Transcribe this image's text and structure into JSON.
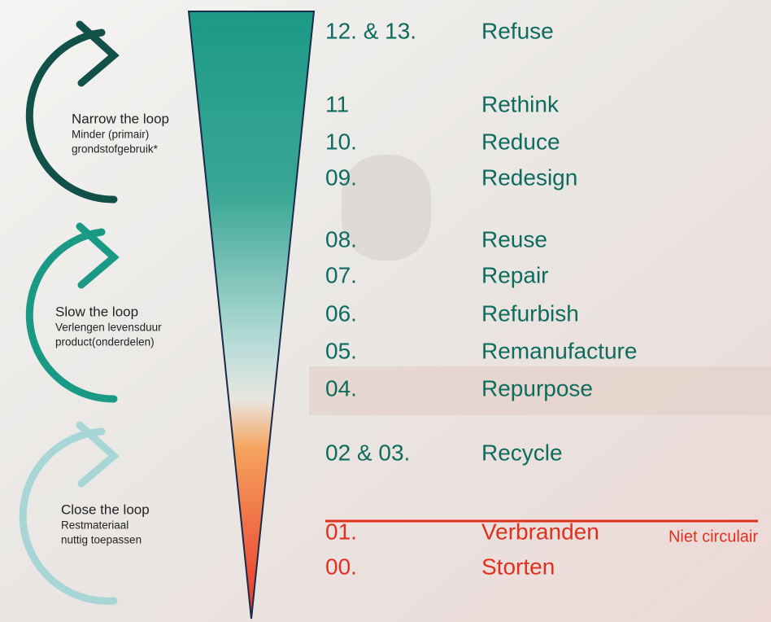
{
  "loops": [
    {
      "title": "Narrow the loop",
      "subtitle": [
        "Minder (primair)",
        "grondstofgebruik*"
      ]
    },
    {
      "title": "Slow the loop",
      "subtitle": [
        "Verlengen levensduur",
        "product(onderdelen)"
      ]
    },
    {
      "title": "Close the loop",
      "subtitle": [
        "Restmateriaal",
        "nuttig toepassen"
      ]
    }
  ],
  "rungs": [
    {
      "number": "12. & 13.",
      "label": "Refuse"
    },
    {
      "number": "11",
      "label": "Rethink"
    },
    {
      "number": "10.",
      "label": "Reduce"
    },
    {
      "number": "09.",
      "label": "Redesign"
    },
    {
      "number": "08.",
      "label": "Reuse"
    },
    {
      "number": "07.",
      "label": "Repair"
    },
    {
      "number": "06.",
      "label": "Refurbish"
    },
    {
      "number": "05.",
      "label": "Remanufacture"
    },
    {
      "number": "04.",
      "label": "Repurpose"
    },
    {
      "number": "02 & 03.",
      "label": "Recycle"
    },
    {
      "number": "01.",
      "label": "Verbranden"
    },
    {
      "number": "00.",
      "label": "Storten"
    }
  ],
  "note": "Niet circulair"
}
